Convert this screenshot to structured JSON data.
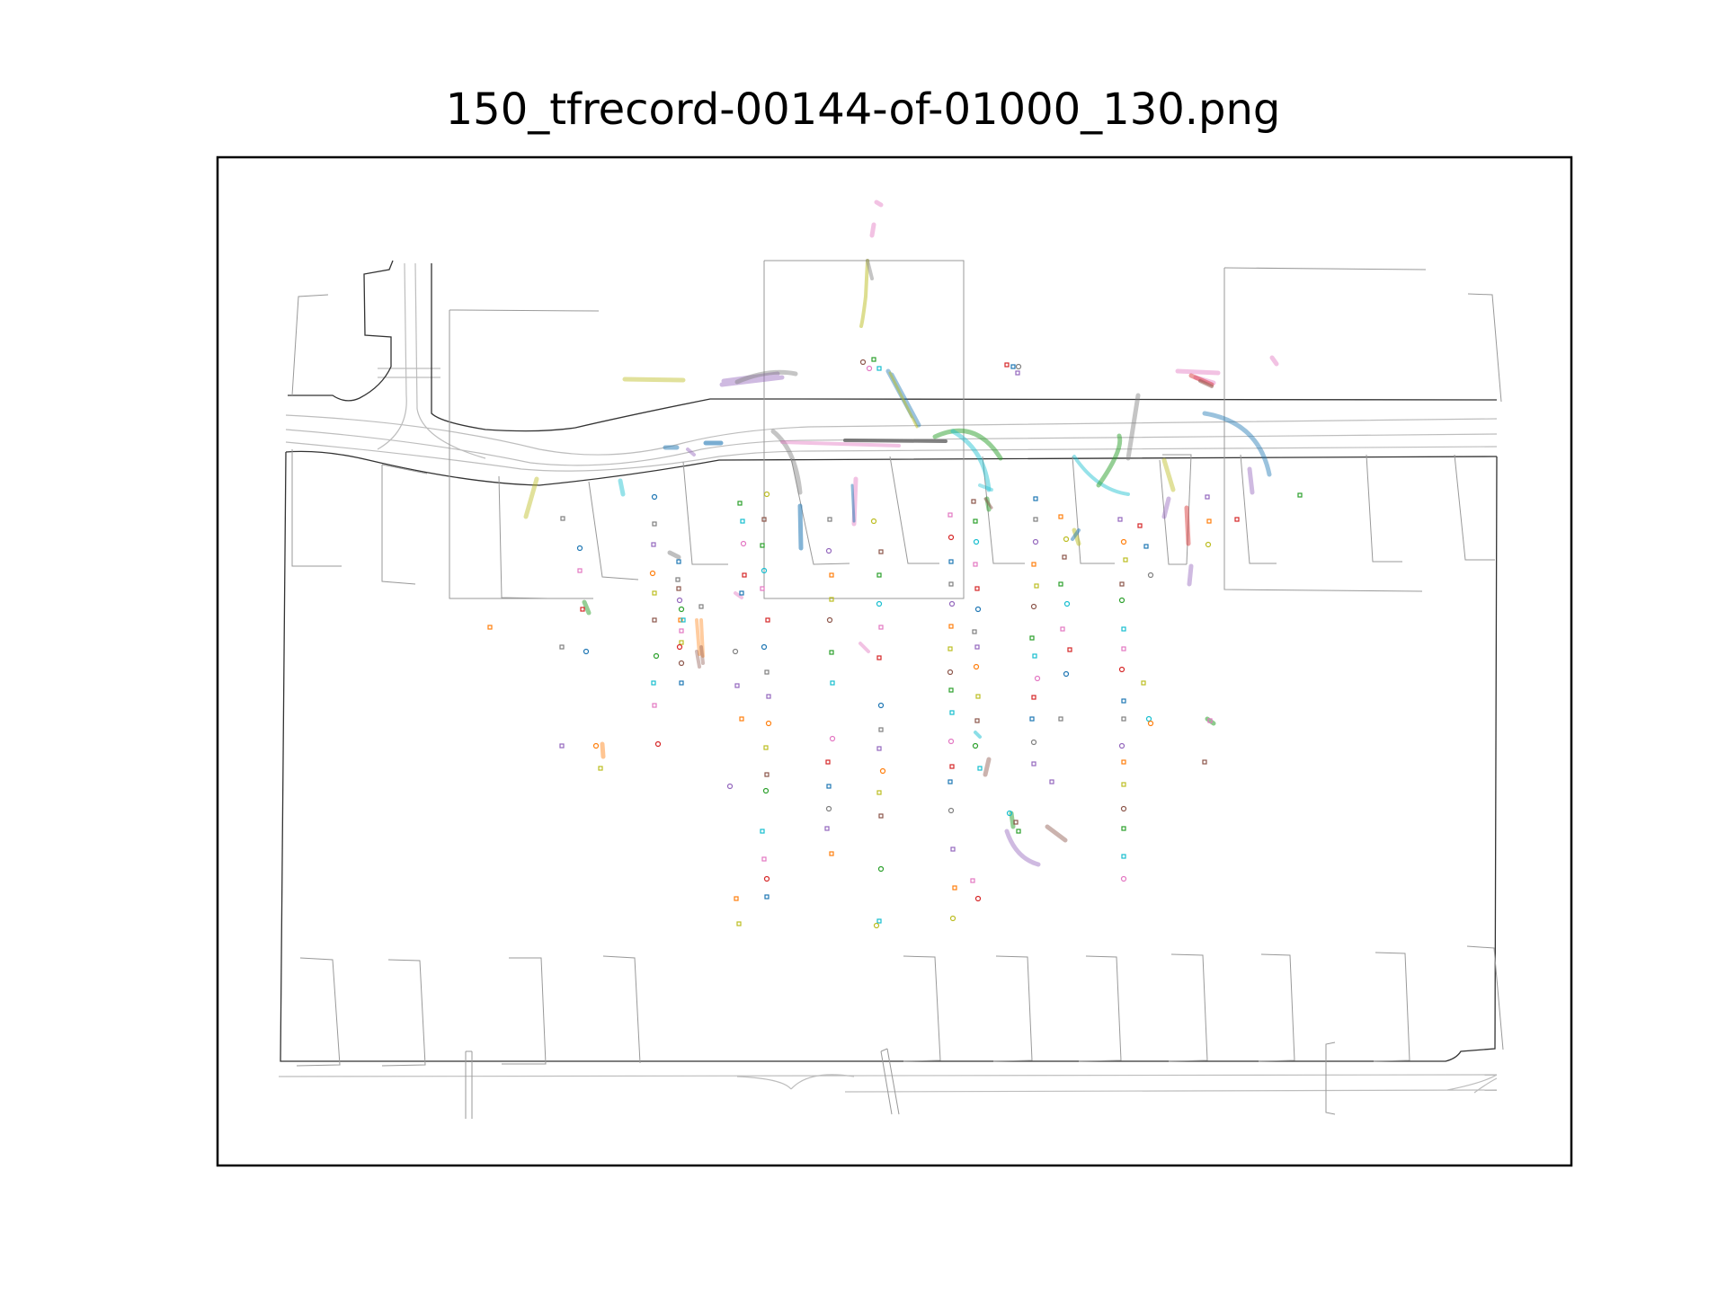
{
  "figure": {
    "title": "150_tfrecord-00144-of-01000_130.png"
  },
  "map": {
    "road_edge_color": "#333333",
    "lane_color": "#bdbdbd",
    "boundary_color": "#999999",
    "palette": [
      "#1f77b4",
      "#ff7f0e",
      "#2ca02c",
      "#d62728",
      "#9467bd",
      "#8c564b",
      "#e377c2",
      "#7f7f7f",
      "#bcbd22",
      "#17becf"
    ]
  }
}
